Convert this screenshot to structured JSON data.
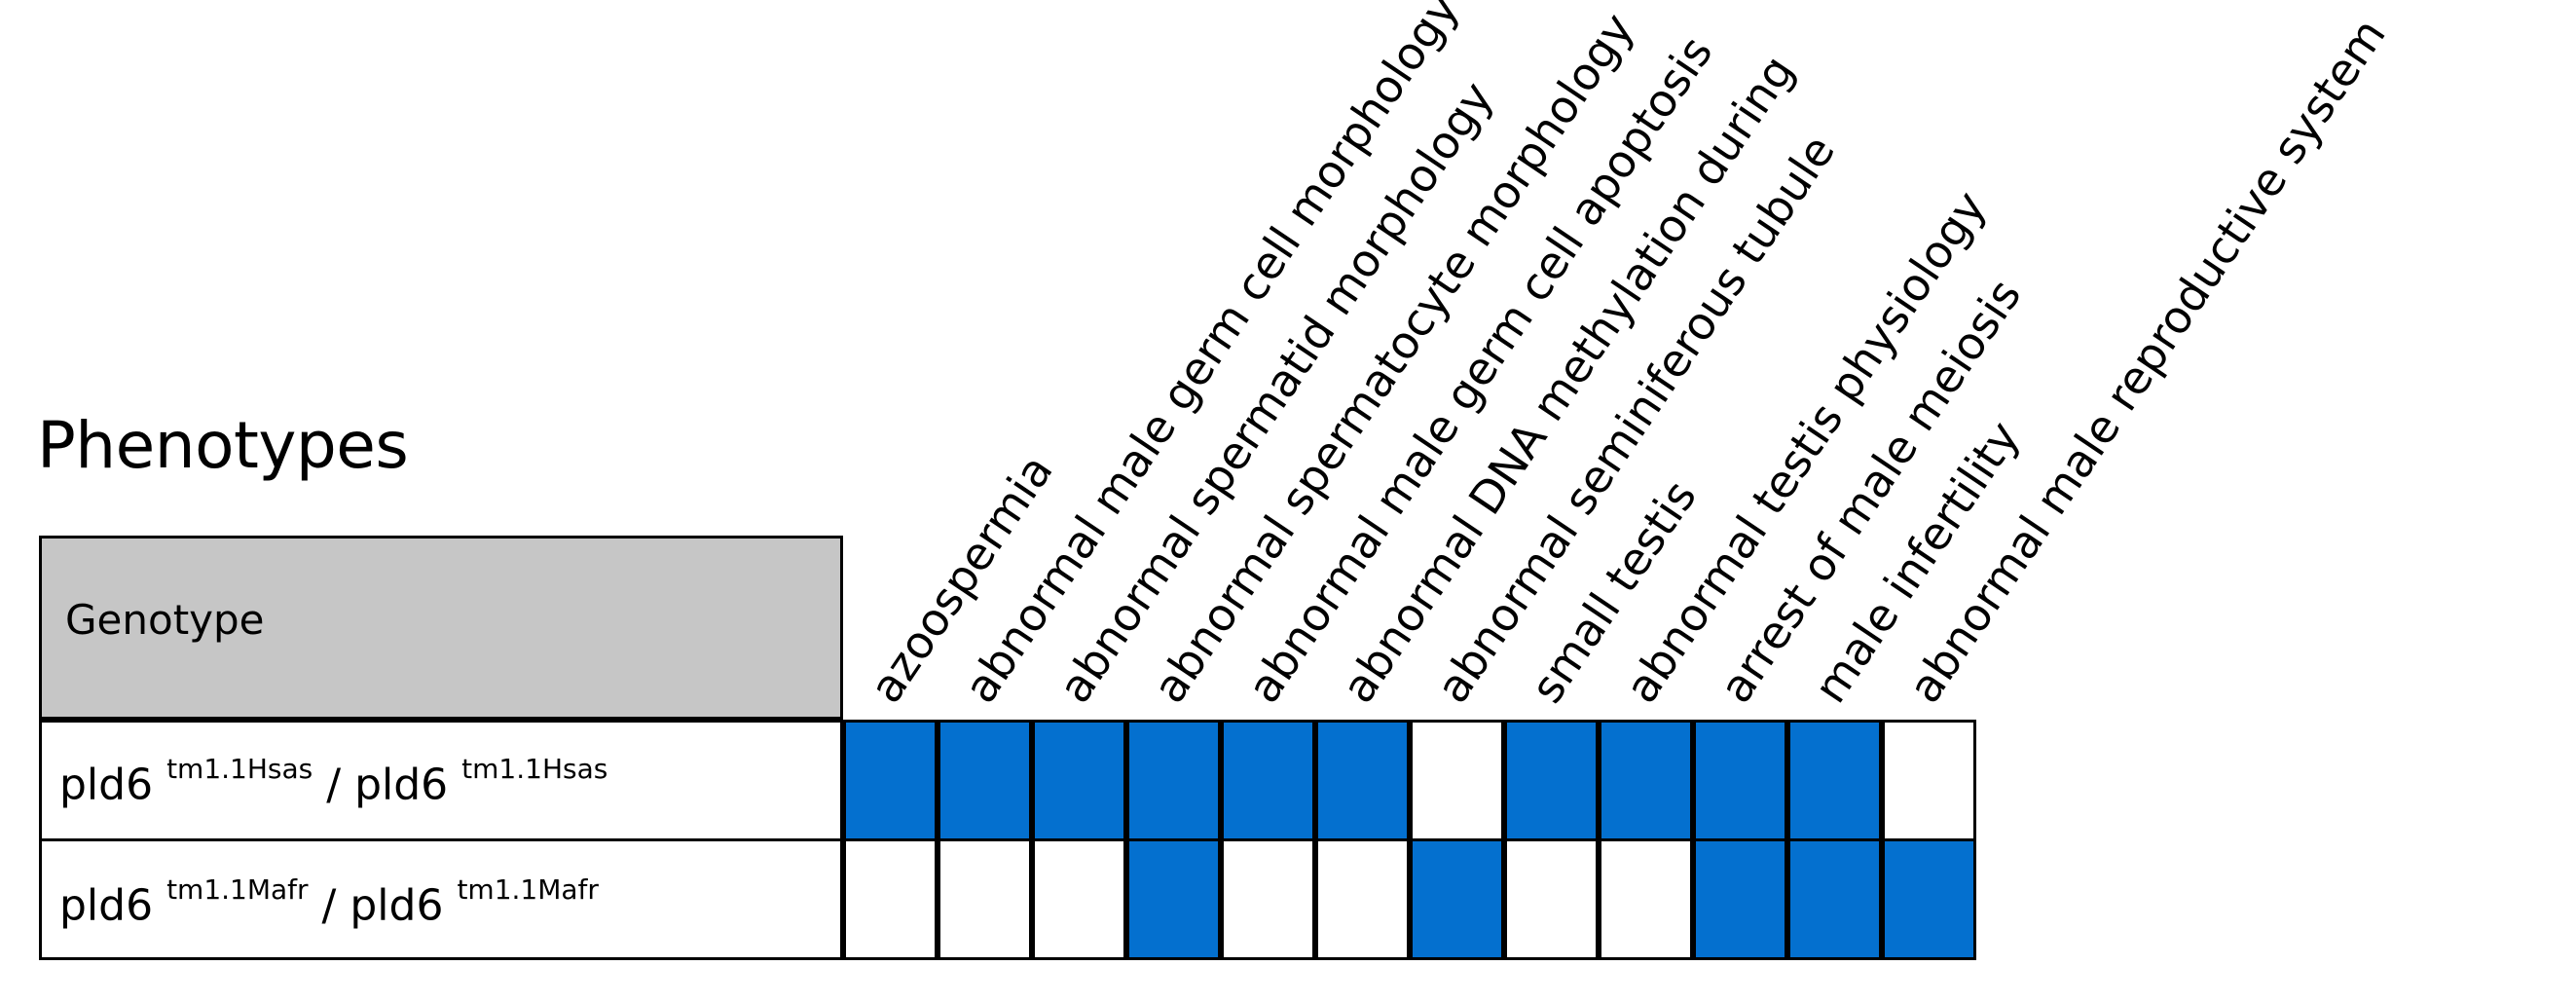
{
  "title": "Phenotypes",
  "genotype_header": "Genotype",
  "rows": [
    {
      "gene": "pld6",
      "allele": "tm1.1Hsas",
      "separator": "/",
      "gene2": "pld6",
      "allele2": "tm1.1Hsas"
    },
    {
      "gene": "pld6",
      "allele": "tm1.1Mafr",
      "separator": "/",
      "gene2": "pld6",
      "allele2": "tm1.1Mafr"
    }
  ],
  "phenotypes": [
    "azoospermia",
    "abnormal male germ cell morphology",
    "abnormal spermatid morphology",
    "abnormal spermatocyte morphology",
    "abnormal male germ cell apoptosis",
    "abnormal DNA methylation during",
    "abnormal seminiferous tubule",
    "small testis",
    "abnormal testis physiology",
    "arrest of male meiosis",
    "male infertility",
    "abnormal male reproductive system"
  ],
  "matrix": [
    [
      1,
      1,
      1,
      1,
      1,
      1,
      0,
      1,
      1,
      1,
      1,
      0
    ],
    [
      0,
      0,
      0,
      1,
      0,
      0,
      1,
      0,
      0,
      1,
      1,
      1
    ]
  ],
  "colors": {
    "present": "#0470cf",
    "absent": "#ffffff",
    "header_bg": "#c6c6c6"
  }
}
